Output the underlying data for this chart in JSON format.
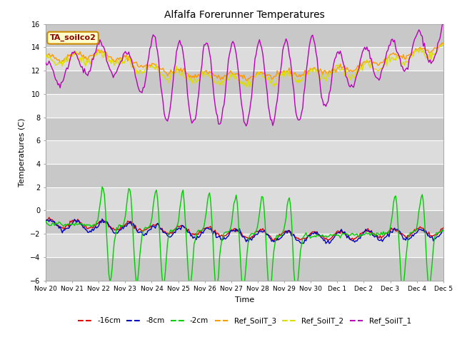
{
  "title": "Alfalfa Forerunner Temperatures",
  "xlabel": "Time",
  "ylabel": "Temperatures (C)",
  "annotation": "TA_soilco2",
  "ylim": [
    -6,
    16
  ],
  "yticks": [
    -6,
    -4,
    -2,
    0,
    2,
    4,
    6,
    8,
    10,
    12,
    14,
    16
  ],
  "colors": {
    "m16cm": "#dd0000",
    "m8cm": "#0000bb",
    "m2cm": "#00cc00",
    "Ref_SoilT_3": "#ff9900",
    "Ref_SoilT_2": "#dddd00",
    "Ref_SoilT_1": "#bb00bb"
  },
  "bg_color": "#dcdcdc",
  "stripe_color": "#c8c8c8",
  "n_points": 360,
  "tick_labels": [
    "Nov 20",
    "Nov 21",
    "Nov 22",
    "Nov 23",
    "Nov 24",
    "Nov 25",
    "Nov 26",
    "Nov 27",
    "Nov 28",
    "Nov 29",
    "Nov 30",
    "Dec 1",
    "Dec 2",
    "Dec 3",
    "Dec 4",
    "Dec 5"
  ],
  "figsize": [
    6.4,
    4.8
  ],
  "dpi": 100
}
